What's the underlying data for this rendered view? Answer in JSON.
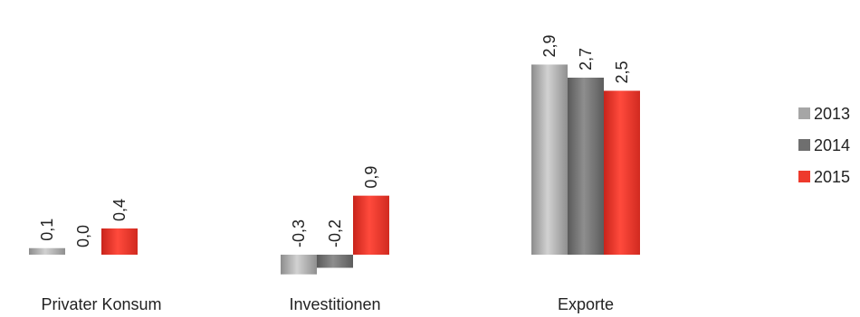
{
  "chart_data": {
    "type": "bar",
    "categories": [
      "Privater Konsum",
      "Investitionen",
      "Exporte"
    ],
    "series": [
      {
        "name": "2013",
        "values": [
          0.1,
          -0.3,
          2.9
        ],
        "labels": [
          "0,1",
          "-0,3",
          "2,9"
        ],
        "color": "#a6a6a6"
      },
      {
        "name": "2014",
        "values": [
          0.0,
          -0.2,
          2.7
        ],
        "labels": [
          "0,0",
          "-0,2",
          "2,7"
        ],
        "color": "#6f6f6f"
      },
      {
        "name": "2015",
        "values": [
          0.4,
          0.9,
          2.5
        ],
        "labels": [
          "0,4",
          "0,9",
          "2,5"
        ],
        "color": "#ee3a2c"
      }
    ],
    "ylim": [
      -0.3,
      2.9
    ],
    "grid": false,
    "legend_position": "right",
    "title": "",
    "xlabel": "",
    "ylabel": ""
  }
}
